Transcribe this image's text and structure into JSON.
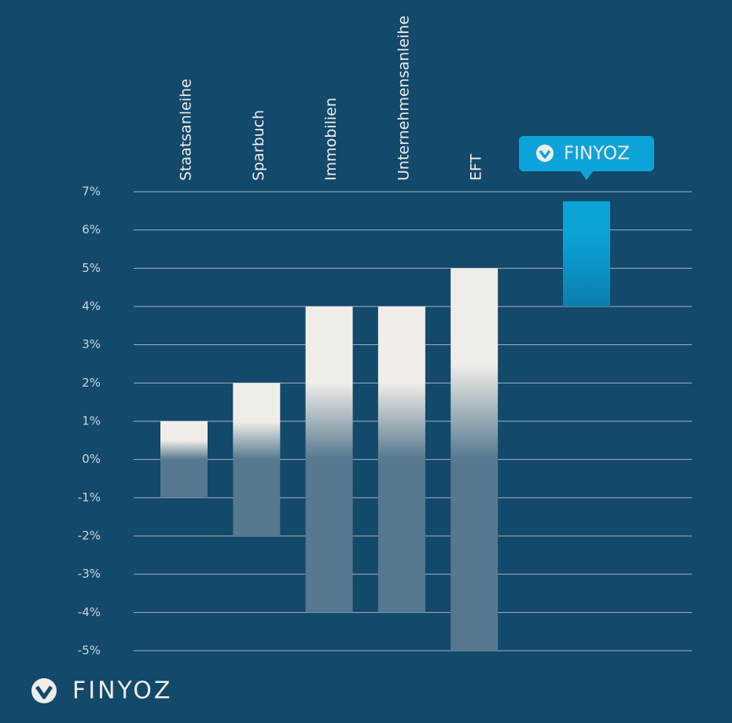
{
  "chart_data": {
    "type": "range-bar",
    "categories": [
      "Staatsanleihe",
      "Sparbuch",
      "Immobilien",
      "Unternehmensanleihe",
      "EFT",
      "FINYOZ"
    ],
    "low": [
      -1,
      -2,
      -4,
      -4,
      -5,
      4
    ],
    "high": [
      1,
      2,
      4,
      4,
      5,
      6.75
    ],
    "colors": [
      "#f0ede8",
      "#f0ede8",
      "#f0ede8",
      "#f0ede8",
      "#f0ede8",
      "#0ca3d9"
    ],
    "negative_color": "#56798f",
    "ylim": [
      -5,
      7
    ],
    "yticks": [
      {
        "value": 7,
        "label": "7%"
      },
      {
        "value": 6,
        "label": "6%"
      },
      {
        "value": 5,
        "label": "5%"
      },
      {
        "value": 4,
        "label": "4%"
      },
      {
        "value": 3,
        "label": "3%"
      },
      {
        "value": 2,
        "label": "2%"
      },
      {
        "value": 1,
        "label": "1%"
      },
      {
        "value": 0,
        "label": "0%"
      },
      {
        "value": -1,
        "label": "-1%"
      },
      {
        "value": -2,
        "label": "-2%"
      },
      {
        "value": -3,
        "label": "-3%"
      },
      {
        "value": -4,
        "label": "-4%"
      },
      {
        "value": -5,
        "label": "-5%"
      }
    ],
    "grid": true
  },
  "brand": "FINYOZ"
}
